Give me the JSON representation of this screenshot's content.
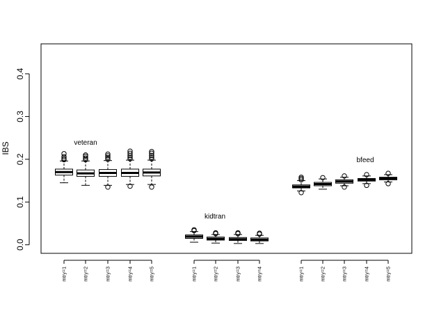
{
  "chart_data": {
    "type": "box",
    "ylabel": "IBS",
    "ylim": [
      -0.02,
      0.47
    ],
    "yticks": [
      0.0,
      0.1,
      0.2,
      0.3,
      0.4
    ],
    "ytick_labels": [
      "0.0",
      "0.1",
      "0.2",
      "0.3",
      "0.4"
    ],
    "grid": false,
    "groups": [
      {
        "label": "veteran",
        "boxes": [
          {
            "name": "mtry=1",
            "whislo": 0.145,
            "q1": 0.163,
            "med": 0.17,
            "q3": 0.177,
            "whishi": 0.196,
            "outliers": [
              0.199,
              0.202,
              0.206,
              0.213
            ]
          },
          {
            "name": "mtry=2",
            "whislo": 0.139,
            "q1": 0.16,
            "med": 0.167,
            "q3": 0.175,
            "whishi": 0.196,
            "outliers": [
              0.199,
              0.203,
              0.207,
              0.21
            ]
          },
          {
            "name": "mtry=3",
            "whislo": 0.139,
            "q1": 0.16,
            "med": 0.168,
            "q3": 0.176,
            "whishi": 0.197,
            "outliers": [
              0.135,
              0.2,
              0.204,
              0.208,
              0.212
            ]
          },
          {
            "name": "mtry=4",
            "whislo": 0.141,
            "q1": 0.16,
            "med": 0.168,
            "q3": 0.177,
            "whishi": 0.198,
            "outliers": [
              0.137,
              0.201,
              0.205,
              0.209,
              0.214,
              0.219
            ]
          },
          {
            "name": "mtry=5",
            "whislo": 0.141,
            "q1": 0.161,
            "med": 0.169,
            "q3": 0.177,
            "whishi": 0.198,
            "outliers": [
              0.135,
              0.201,
              0.205,
              0.209,
              0.214,
              0.218
            ]
          }
        ]
      },
      {
        "label": "kidtran",
        "boxes": [
          {
            "name": "mtry=1",
            "whislo": 0.006,
            "q1": 0.015,
            "med": 0.019,
            "q3": 0.023,
            "whishi": 0.031,
            "outliers": [
              0.033,
              0.035
            ]
          },
          {
            "name": "mtry=2",
            "whislo": 0.004,
            "q1": 0.011,
            "med": 0.014,
            "q3": 0.018,
            "whishi": 0.024,
            "outliers": [
              0.026,
              0.028
            ]
          },
          {
            "name": "mtry=3",
            "whislo": 0.003,
            "q1": 0.01,
            "med": 0.013,
            "q3": 0.017,
            "whishi": 0.024,
            "outliers": [
              0.026,
              0.028
            ]
          },
          {
            "name": "mtry=4",
            "whislo": 0.003,
            "q1": 0.009,
            "med": 0.012,
            "q3": 0.016,
            "whishi": 0.022,
            "outliers": [
              0.025,
              0.027
            ]
          }
        ]
      },
      {
        "label": "bfeed",
        "boxes": [
          {
            "name": "mtry=1",
            "whislo": 0.126,
            "q1": 0.133,
            "med": 0.136,
            "q3": 0.14,
            "whishi": 0.15,
            "outliers": [
              0.122,
              0.152,
              0.155,
              0.158
            ]
          },
          {
            "name": "mtry=2",
            "whislo": 0.13,
            "q1": 0.138,
            "med": 0.142,
            "q3": 0.146,
            "whishi": 0.154,
            "outliers": [
              0.157
            ]
          },
          {
            "name": "mtry=3",
            "whislo": 0.138,
            "q1": 0.144,
            "med": 0.148,
            "q3": 0.152,
            "whishi": 0.158,
            "outliers": [
              0.135,
              0.161
            ]
          },
          {
            "name": "mtry=4",
            "whislo": 0.143,
            "q1": 0.149,
            "med": 0.152,
            "q3": 0.155,
            "whishi": 0.161,
            "outliers": [
              0.139,
              0.164
            ]
          },
          {
            "name": "mtry=5",
            "whislo": 0.147,
            "q1": 0.152,
            "med": 0.155,
            "q3": 0.158,
            "whishi": 0.164,
            "outliers": [
              0.143,
              0.167
            ]
          }
        ]
      }
    ]
  }
}
